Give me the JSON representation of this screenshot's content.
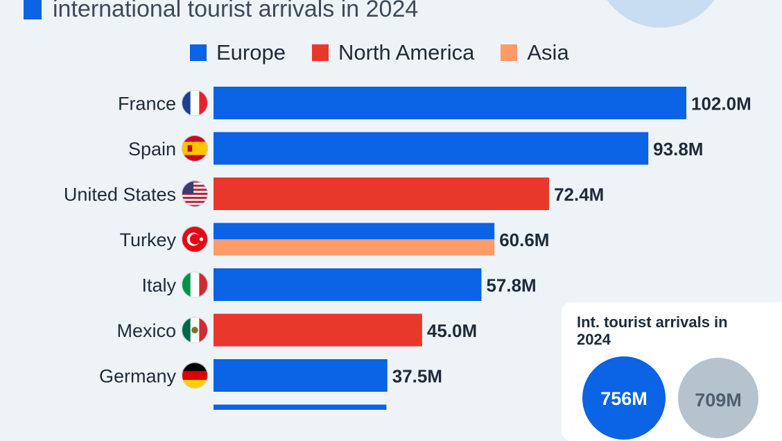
{
  "header": {
    "title_line2": "international tourist arrivals in 2024"
  },
  "colors": {
    "europe": "#0b63e5",
    "north_america": "#e8382b",
    "asia": "#fd9c68",
    "title_accent": "#0b63e5",
    "decor_circle": "#c9ddf2"
  },
  "legend": [
    {
      "label": "Europe",
      "color": "#0b63e5"
    },
    {
      "label": "North America",
      "color": "#e8382b"
    },
    {
      "label": "Asia",
      "color": "#fd9c68"
    }
  ],
  "chart_data": {
    "type": "bar",
    "orientation": "horizontal",
    "categories": [
      "France",
      "Spain",
      "United States",
      "Turkey",
      "Italy",
      "Mexico",
      "Germany"
    ],
    "values": [
      102.0,
      93.8,
      72.4,
      60.6,
      57.8,
      45.0,
      37.5
    ],
    "value_labels": [
      "102.0M",
      "93.8M",
      "72.4M",
      "60.6M",
      "57.8M",
      "45.0M",
      "37.5M"
    ],
    "regions": [
      [
        "Europe"
      ],
      [
        "Europe"
      ],
      [
        "North America"
      ],
      [
        "Europe",
        "Asia"
      ],
      [
        "Europe"
      ],
      [
        "North America"
      ],
      [
        "Europe"
      ]
    ],
    "flags": [
      "france-flag",
      "spain-flag",
      "usa-flag",
      "turkey-flag",
      "italy-flag",
      "mexico-flag",
      "germany-flag"
    ],
    "partially_visible_bar": {
      "value": 37.3,
      "region": "Europe"
    },
    "xlim": [
      0,
      102.0
    ],
    "grid": false,
    "legend_position": "top"
  },
  "panel": {
    "title": "Int. tourist arrivals in 2024",
    "bubbles": [
      {
        "value_label": "756M",
        "color": "#0b63e5"
      },
      {
        "value_label": "709M",
        "color": "#b5c3cf"
      }
    ]
  }
}
